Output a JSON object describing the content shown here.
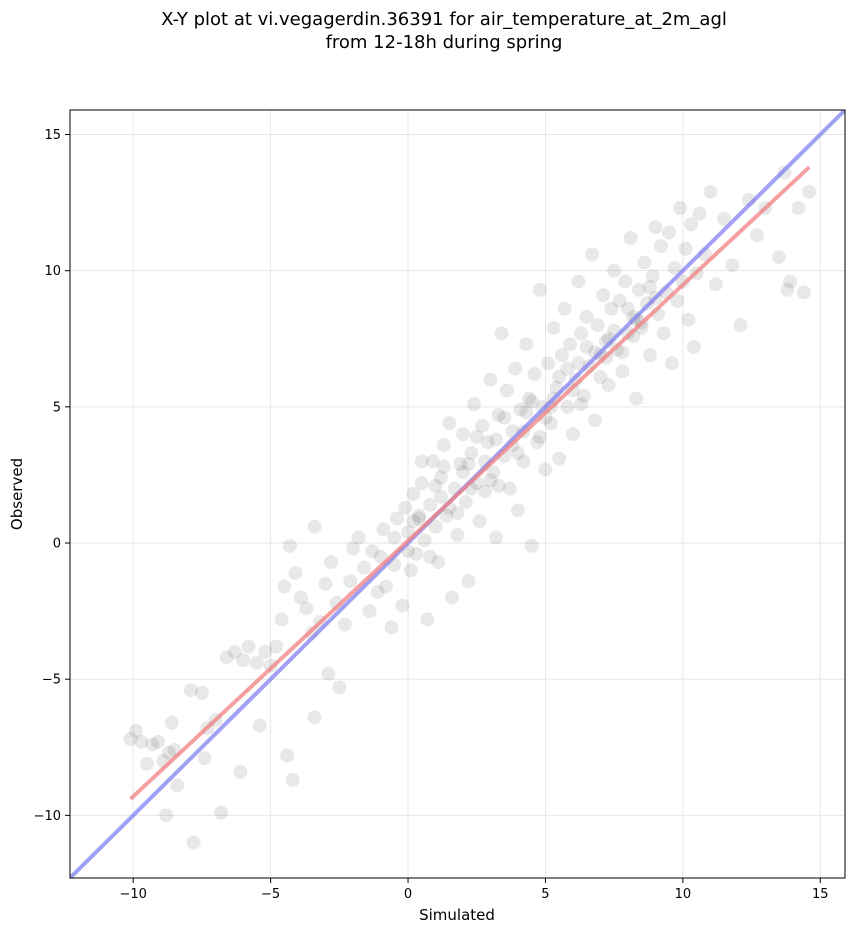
{
  "chart_data": {
    "type": "scatter",
    "title": "X-Y plot at vi.vegagerdin.36391 for air_temperature_at_2m_agl",
    "subtitle": "from 12-18h during spring",
    "xlabel": "Simulated",
    "ylabel": "Observed",
    "xlim": [
      -12.3,
      15.9
    ],
    "ylim": [
      -12.3,
      15.9
    ],
    "xticks": [
      -10,
      -5,
      0,
      5,
      10,
      15
    ],
    "yticks": [
      -10,
      -5,
      0,
      5,
      10,
      15
    ],
    "xtick_labels": [
      "−10",
      "−5",
      "0",
      "5",
      "10",
      "15"
    ],
    "ytick_labels": [
      "−10",
      "−5",
      "0",
      "5",
      "10",
      "15"
    ],
    "grid": true,
    "point_color": "#000000",
    "point_opacity": 0.09,
    "regression_line": {
      "color": "#f08080",
      "x": [
        -10.1,
        14.6
      ],
      "y": [
        -9.4,
        13.8
      ]
    },
    "identity_line": {
      "color": "#8080f0",
      "x": [
        -12.3,
        15.9
      ],
      "y": [
        -12.3,
        15.9
      ]
    },
    "points": [
      [
        -10.1,
        -7.2
      ],
      [
        -9.9,
        -6.9
      ],
      [
        -9.7,
        -7.3
      ],
      [
        -9.5,
        -8.1
      ],
      [
        -9.3,
        -7.4
      ],
      [
        -9.1,
        -7.3
      ],
      [
        -8.9,
        -8.0
      ],
      [
        -8.7,
        -7.7
      ],
      [
        -8.6,
        -6.6
      ],
      [
        -8.5,
        -7.6
      ],
      [
        -8.8,
        -10.0
      ],
      [
        -8.4,
        -8.9
      ],
      [
        -7.9,
        -5.4
      ],
      [
        -7.5,
        -5.5
      ],
      [
        -7.3,
        -6.8
      ],
      [
        -7.4,
        -7.9
      ],
      [
        -7.0,
        -6.5
      ],
      [
        -6.8,
        -9.9
      ],
      [
        -6.6,
        -4.2
      ],
      [
        -6.3,
        -4.0
      ],
      [
        -6.0,
        -4.3
      ],
      [
        -5.8,
        -3.8
      ],
      [
        -5.5,
        -4.4
      ],
      [
        -5.2,
        -4.0
      ],
      [
        -6.1,
        -8.4
      ],
      [
        -7.8,
        -11.0
      ],
      [
        -5.4,
        -6.7
      ],
      [
        -5.0,
        -4.5
      ],
      [
        -4.8,
        -3.8
      ],
      [
        -4.6,
        -2.8
      ],
      [
        -4.5,
        -1.6
      ],
      [
        -4.3,
        -0.1
      ],
      [
        -4.1,
        -1.1
      ],
      [
        -3.9,
        -2.0
      ],
      [
        -3.7,
        -2.4
      ],
      [
        -3.4,
        0.6
      ],
      [
        -3.5,
        -3.3
      ],
      [
        -3.2,
        -2.9
      ],
      [
        -3.0,
        -1.5
      ],
      [
        -2.8,
        -0.7
      ],
      [
        -2.6,
        -2.2
      ],
      [
        -2.9,
        -4.8
      ],
      [
        -3.4,
        -6.4
      ],
      [
        -2.5,
        -5.3
      ],
      [
        -4.4,
        -7.8
      ],
      [
        -4.2,
        -8.7
      ],
      [
        -2.3,
        -3.0
      ],
      [
        -2.1,
        -1.4
      ],
      [
        -2.0,
        -0.2
      ],
      [
        -1.8,
        0.2
      ],
      [
        -1.6,
        -0.9
      ],
      [
        -1.4,
        -2.5
      ],
      [
        -1.3,
        -0.3
      ],
      [
        -1.1,
        -1.8
      ],
      [
        -0.9,
        0.5
      ],
      [
        -0.8,
        -1.6
      ],
      [
        -0.6,
        -3.1
      ],
      [
        -0.5,
        -0.8
      ],
      [
        -0.4,
        0.9
      ],
      [
        -0.2,
        -2.3
      ],
      [
        -0.1,
        1.3
      ],
      [
        0.0,
        0.4
      ],
      [
        0.1,
        -1.0
      ],
      [
        0.2,
        1.8
      ],
      [
        0.3,
        -0.4
      ],
      [
        0.4,
        0.9
      ],
      [
        0.5,
        2.2
      ],
      [
        0.6,
        0.1
      ],
      [
        0.7,
        -2.8
      ],
      [
        0.8,
        1.4
      ],
      [
        0.9,
        3.0
      ],
      [
        1.0,
        0.6
      ],
      [
        1.1,
        -0.7
      ],
      [
        1.2,
        2.4
      ],
      [
        1.3,
        3.6
      ],
      [
        1.4,
        1.0
      ],
      [
        1.5,
        4.4
      ],
      [
        1.6,
        -2.0
      ],
      [
        1.7,
        2.0
      ],
      [
        1.8,
        0.3
      ],
      [
        1.9,
        2.9
      ],
      [
        2.0,
        4.0
      ],
      [
        2.1,
        1.5
      ],
      [
        2.2,
        -1.4
      ],
      [
        2.3,
        3.3
      ],
      [
        2.4,
        5.1
      ],
      [
        2.5,
        2.2
      ],
      [
        2.6,
        0.8
      ],
      [
        2.7,
        4.3
      ],
      [
        2.8,
        1.9
      ],
      [
        2.9,
        3.7
      ],
      [
        3.0,
        6.0
      ],
      [
        3.1,
        2.6
      ],
      [
        3.2,
        0.2
      ],
      [
        3.3,
        4.7
      ],
      [
        3.4,
        7.7
      ],
      [
        3.5,
        3.2
      ],
      [
        3.6,
        5.6
      ],
      [
        3.7,
        2.0
      ],
      [
        3.8,
        4.1
      ],
      [
        3.9,
        6.4
      ],
      [
        4.0,
        1.2
      ],
      [
        4.1,
        4.9
      ],
      [
        4.2,
        3.0
      ],
      [
        4.3,
        7.3
      ],
      [
        4.4,
        5.3
      ],
      [
        4.5,
        -0.1
      ],
      [
        4.6,
        6.2
      ],
      [
        4.7,
        3.7
      ],
      [
        4.8,
        9.3
      ],
      [
        4.9,
        5.0
      ],
      [
        5.0,
        2.7
      ],
      [
        5.1,
        6.6
      ],
      [
        5.2,
        4.4
      ],
      [
        5.3,
        7.9
      ],
      [
        5.4,
        5.7
      ],
      [
        5.5,
        3.1
      ],
      [
        5.6,
        6.9
      ],
      [
        5.7,
        8.6
      ],
      [
        5.8,
        5.0
      ],
      [
        5.9,
        7.3
      ],
      [
        6.0,
        4.0
      ],
      [
        6.1,
        6.0
      ],
      [
        6.2,
        9.6
      ],
      [
        6.3,
        7.7
      ],
      [
        6.4,
        5.4
      ],
      [
        6.5,
        8.3
      ],
      [
        6.6,
        6.5
      ],
      [
        6.7,
        10.6
      ],
      [
        6.8,
        4.5
      ],
      [
        6.9,
        8.0
      ],
      [
        7.0,
        6.9
      ],
      [
        7.1,
        9.1
      ],
      [
        7.2,
        7.4
      ],
      [
        7.3,
        5.8
      ],
      [
        7.4,
        8.6
      ],
      [
        7.5,
        10.0
      ],
      [
        7.6,
        7.1
      ],
      [
        7.7,
        8.9
      ],
      [
        7.8,
        6.3
      ],
      [
        7.9,
        9.6
      ],
      [
        8.0,
        7.7
      ],
      [
        8.1,
        11.2
      ],
      [
        8.2,
        8.3
      ],
      [
        8.3,
        5.3
      ],
      [
        8.4,
        9.3
      ],
      [
        8.5,
        7.9
      ],
      [
        8.6,
        10.3
      ],
      [
        8.7,
        8.8
      ],
      [
        8.8,
        6.9
      ],
      [
        8.9,
        9.8
      ],
      [
        9.0,
        11.6
      ],
      [
        9.1,
        8.4
      ],
      [
        9.2,
        10.9
      ],
      [
        9.3,
        7.7
      ],
      [
        9.4,
        9.2
      ],
      [
        9.5,
        11.4
      ],
      [
        9.6,
        6.6
      ],
      [
        9.7,
        10.1
      ],
      [
        9.8,
        8.9
      ],
      [
        9.9,
        12.3
      ],
      [
        10.0,
        9.6
      ],
      [
        10.1,
        10.8
      ],
      [
        10.2,
        8.2
      ],
      [
        10.3,
        11.7
      ],
      [
        10.4,
        7.2
      ],
      [
        10.5,
        9.9
      ],
      [
        10.6,
        12.1
      ],
      [
        10.8,
        10.6
      ],
      [
        11.0,
        12.9
      ],
      [
        11.2,
        9.5
      ],
      [
        11.5,
        11.9
      ],
      [
        11.8,
        10.2
      ],
      [
        12.1,
        8.0
      ],
      [
        12.4,
        12.6
      ],
      [
        12.7,
        11.3
      ],
      [
        13.0,
        12.3
      ],
      [
        13.5,
        10.5
      ],
      [
        13.7,
        13.6
      ],
      [
        13.9,
        9.6
      ],
      [
        14.2,
        12.3
      ],
      [
        14.4,
        9.2
      ],
      [
        14.6,
        12.9
      ],
      [
        13.8,
        9.3
      ],
      [
        0.5,
        3.0
      ],
      [
        1.0,
        2.1
      ],
      [
        1.5,
        1.3
      ],
      [
        2.0,
        2.6
      ],
      [
        2.5,
        3.9
      ],
      [
        3.0,
        2.3
      ],
      [
        3.5,
        4.6
      ],
      [
        4.0,
        3.3
      ],
      [
        4.5,
        5.2
      ],
      [
        5.0,
        4.6
      ],
      [
        5.5,
        6.1
      ],
      [
        6.0,
        5.6
      ],
      [
        6.5,
        7.2
      ],
      [
        7.0,
        6.1
      ],
      [
        7.5,
        7.8
      ],
      [
        8.0,
        8.6
      ],
      [
        8.5,
        8.1
      ],
      [
        9.0,
        9.0
      ],
      [
        0.2,
        0.8
      ],
      [
        0.8,
        -0.5
      ],
      [
        1.3,
        2.8
      ],
      [
        1.8,
        1.1
      ],
      [
        2.3,
        2.0
      ],
      [
        2.8,
        3.0
      ],
      [
        3.3,
        2.1
      ],
      [
        3.8,
        3.6
      ],
      [
        4.3,
        4.8
      ],
      [
        4.8,
        3.9
      ],
      [
        5.3,
        5.3
      ],
      [
        5.8,
        6.4
      ],
      [
        6.3,
        5.1
      ],
      [
        6.8,
        7.0
      ],
      [
        7.3,
        7.5
      ],
      [
        7.8,
        7.0
      ],
      [
        8.3,
        8.2
      ],
      [
        8.8,
        9.4
      ],
      [
        -1.0,
        -0.5
      ],
      [
        -0.5,
        0.2
      ],
      [
        0.0,
        -0.3
      ],
      [
        0.4,
        1.0
      ],
      [
        1.2,
        1.7
      ],
      [
        2.2,
        2.9
      ],
      [
        3.2,
        3.8
      ],
      [
        4.2,
        4.1
      ],
      [
        5.2,
        5.0
      ],
      [
        6.2,
        6.6
      ],
      [
        7.2,
        6.8
      ],
      [
        8.2,
        7.6
      ]
    ]
  }
}
